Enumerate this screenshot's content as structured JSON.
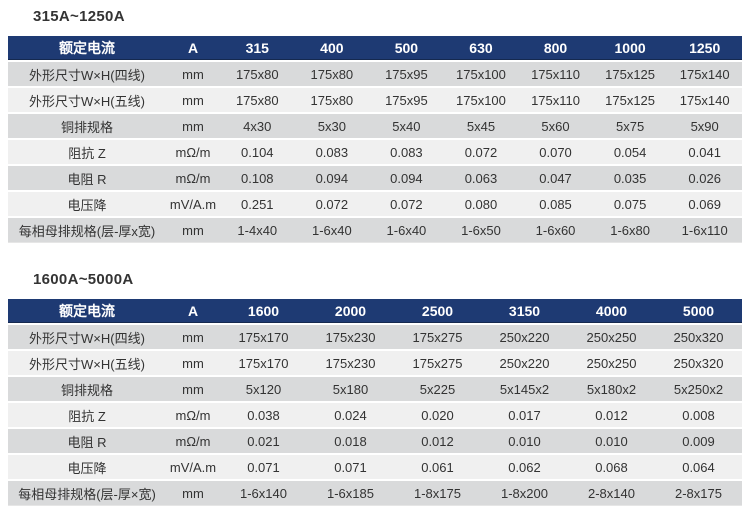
{
  "colors": {
    "header_bg": "#1e3a73",
    "header_text": "#ffffff",
    "row_odd_bg": "#d9dadb",
    "row_even_bg": "#f0f0f0",
    "body_text": "#333333",
    "title_text": "#333333"
  },
  "tables": [
    {
      "title": "315A~1250A",
      "header": {
        "label": "额定电流",
        "unit": "A",
        "columns": [
          "315",
          "400",
          "500",
          "630",
          "800",
          "1000",
          "1250"
        ]
      },
      "rows": [
        {
          "label": "外形尺寸W×H(四线)",
          "unit": "mm",
          "values": [
            "175x80",
            "175x80",
            "175x95",
            "175x100",
            "175x110",
            "175x125",
            "175x140"
          ]
        },
        {
          "label": "外形尺寸W×H(五线)",
          "unit": "mm",
          "values": [
            "175x80",
            "175x80",
            "175x95",
            "175x100",
            "175x110",
            "175x125",
            "175x140"
          ]
        },
        {
          "label": "铜排规格",
          "unit": "mm",
          "values": [
            "4x30",
            "5x30",
            "5x40",
            "5x45",
            "5x60",
            "5x75",
            "5x90"
          ]
        },
        {
          "label": "阻抗 Z",
          "unit": "mΩ/m",
          "values": [
            "0.104",
            "0.083",
            "0.083",
            "0.072",
            "0.070",
            "0.054",
            "0.041"
          ]
        },
        {
          "label": "电阻 R",
          "unit": "mΩ/m",
          "values": [
            "0.108",
            "0.094",
            "0.094",
            "0.063",
            "0.047",
            "0.035",
            "0.026"
          ]
        },
        {
          "label": "电压降",
          "unit": "mV/A.m",
          "values": [
            "0.251",
            "0.072",
            "0.072",
            "0.080",
            "0.085",
            "0.075",
            "0.069"
          ]
        },
        {
          "label": "每相母排规格(层-厚x宽)",
          "unit": "mm",
          "values": [
            "1-4x40",
            "1-6x40",
            "1-6x40",
            "1-6x50",
            "1-6x60",
            "1-6x80",
            "1-6x110"
          ]
        }
      ]
    },
    {
      "title": "1600A~5000A",
      "header": {
        "label": "额定电流",
        "unit": "A",
        "columns": [
          "1600",
          "2000",
          "2500",
          "3150",
          "4000",
          "5000"
        ]
      },
      "rows": [
        {
          "label": "外形尺寸W×H(四线)",
          "unit": "mm",
          "values": [
            "175x170",
            "175x230",
            "175x275",
            "250x220",
            "250x250",
            "250x320"
          ]
        },
        {
          "label": "外形尺寸W×H(五线)",
          "unit": "mm",
          "values": [
            "175x170",
            "175x230",
            "175x275",
            "250x220",
            "250x250",
            "250x320"
          ]
        },
        {
          "label": "铜排规格",
          "unit": "mm",
          "values": [
            "5x120",
            "5x180",
            "5x225",
            "5x145x2",
            "5x180x2",
            "5x250x2"
          ]
        },
        {
          "label": "阻抗 Z",
          "unit": "mΩ/m",
          "values": [
            "0.038",
            "0.024",
            "0.020",
            "0.017",
            "0.012",
            "0.008"
          ]
        },
        {
          "label": "电阻 R",
          "unit": "mΩ/m",
          "values": [
            "0.021",
            "0.018",
            "0.012",
            "0.010",
            "0.010",
            "0.009"
          ]
        },
        {
          "label": "电压降",
          "unit": "mV/A.m",
          "values": [
            "0.071",
            "0.071",
            "0.061",
            "0.062",
            "0.068",
            "0.064"
          ]
        },
        {
          "label": "每相母排规格(层-厚×宽)",
          "unit": "mm",
          "values": [
            "1-6x140",
            "1-6x185",
            "1-8x175",
            "1-8x200",
            "2-8x140",
            "2-8x175"
          ]
        }
      ]
    }
  ]
}
